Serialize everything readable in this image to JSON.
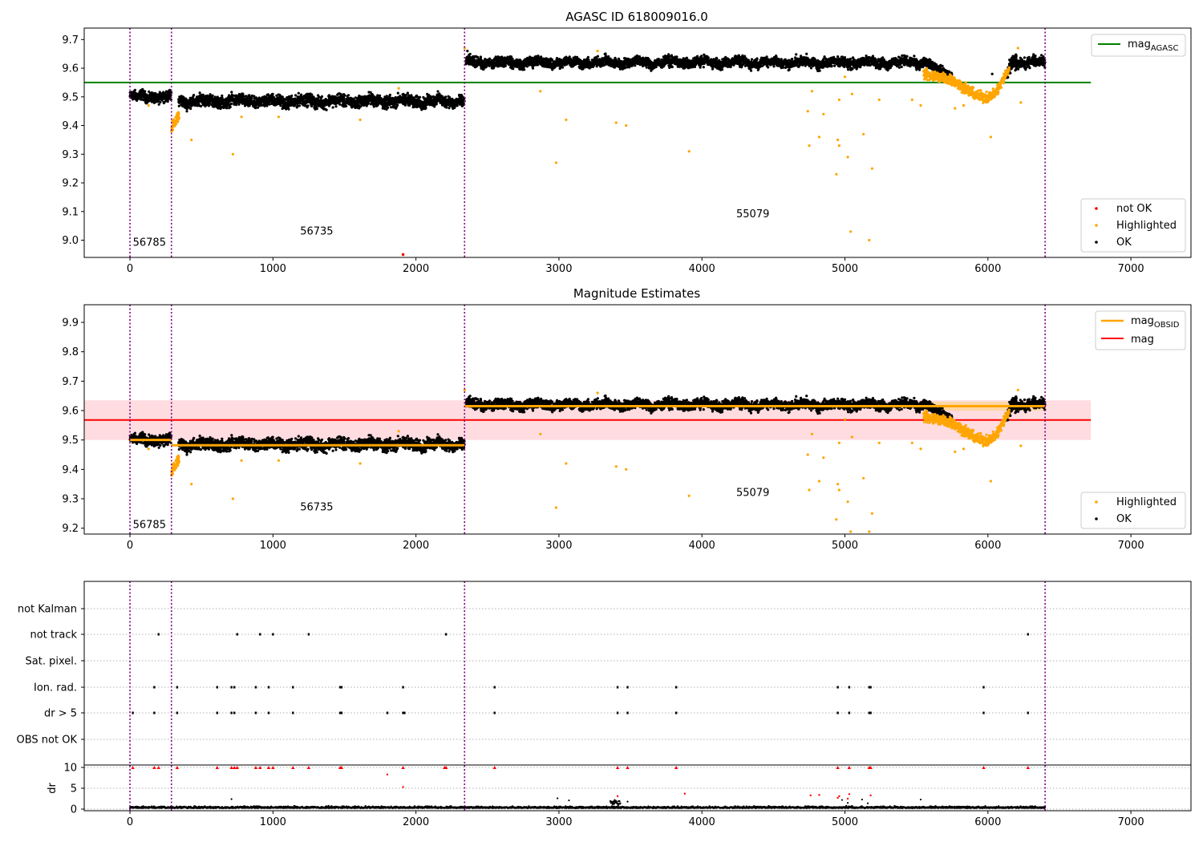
{
  "chart_data": [
    {
      "type": "scatter",
      "title": "AGASC ID 618009016.0",
      "xlim": [
        -320,
        7420
      ],
      "ylim": [
        8.94,
        9.74
      ],
      "xticks": [
        0,
        1000,
        2000,
        3000,
        4000,
        5000,
        6000,
        7000
      ],
      "yticks": [
        9.0,
        9.1,
        9.2,
        9.3,
        9.4,
        9.5,
        9.6,
        9.7
      ],
      "grid": false,
      "vlines": [
        0,
        290,
        2340,
        6400
      ],
      "obsid_annotations": [
        {
          "label": "56785",
          "x": 20,
          "y": 8.98
        },
        {
          "label": "56735",
          "x": 1190,
          "y": 9.02
        },
        {
          "label": "55079",
          "x": 4240,
          "y": 9.08
        }
      ],
      "hlines": [
        {
          "name": "mag_AGASC",
          "y": 9.55,
          "x0": -320,
          "x1": 6720,
          "color": "#008000"
        }
      ],
      "legend_lines": [
        {
          "label": "mag",
          "sub": "AGASC",
          "color": "#008000"
        }
      ],
      "legend_points": [
        {
          "label": "not OK",
          "color": "#ff0000"
        },
        {
          "label": "Highlighted",
          "color": "#ffa500"
        },
        {
          "label": "OK",
          "color": "#000000"
        }
      ],
      "legend_placement": [
        "top-right",
        "bottom-right"
      ],
      "ok_segments": [
        {
          "x0": 0,
          "x1": 290,
          "level": 9.5,
          "noise": 0.012
        },
        {
          "x0": 340,
          "x1": 2340,
          "level": 9.485,
          "noise": 0.014
        },
        {
          "x0": 2350,
          "x1": 5600,
          "level": 9.62,
          "noise": 0.012
        },
        {
          "x0": 6150,
          "x1": 6400,
          "level": 9.62,
          "noise": 0.012
        }
      ],
      "highlight_trends": [
        {
          "x0": 290,
          "x1": 345,
          "y0": 9.39,
          "y1": 9.44
        },
        {
          "x0": 5550,
          "x1": 5750,
          "y0": 9.58,
          "y1": 9.56
        },
        {
          "x0": 5750,
          "x1": 5900,
          "y0": 9.56,
          "y1": 9.51
        },
        {
          "x0": 5900,
          "x1": 6050,
          "y0": 9.51,
          "y1": 9.51
        },
        {
          "x0": 6050,
          "x1": 6150,
          "y0": 9.51,
          "y1": 9.6
        }
      ],
      "ok_trend_end": {
        "x0": 5600,
        "x1": 5750,
        "y0": 9.61,
        "y1": 9.57
      },
      "ok_trend_rise": {
        "x0": 6130,
        "x1": 6200,
        "y0": 9.58,
        "y1": 9.64
      },
      "highlight_outliers": [
        [
          130,
          9.47
        ],
        [
          720,
          9.3
        ],
        [
          430,
          9.35
        ],
        [
          780,
          9.43
        ],
        [
          1040,
          9.43
        ],
        [
          1610,
          9.42
        ],
        [
          1880,
          9.53
        ],
        [
          2340,
          9.67
        ],
        [
          2870,
          9.52
        ],
        [
          2980,
          9.27
        ],
        [
          3050,
          9.42
        ],
        [
          3270,
          9.66
        ],
        [
          3400,
          9.41
        ],
        [
          3470,
          9.4
        ],
        [
          3910,
          9.31
        ],
        [
          4740,
          9.45
        ],
        [
          4750,
          9.33
        ],
        [
          4770,
          9.52
        ],
        [
          4820,
          9.36
        ],
        [
          4850,
          9.44
        ],
        [
          4940,
          9.23
        ],
        [
          4950,
          9.35
        ],
        [
          4960,
          9.33
        ],
        [
          4960,
          9.49
        ],
        [
          5000,
          9.57
        ],
        [
          5020,
          9.29
        ],
        [
          5040,
          9.03
        ],
        [
          5050,
          9.51
        ],
        [
          5130,
          9.37
        ],
        [
          5170,
          9.0
        ],
        [
          5190,
          9.25
        ],
        [
          5240,
          9.49
        ],
        [
          5470,
          9.49
        ],
        [
          5530,
          9.47
        ],
        [
          5770,
          9.46
        ],
        [
          5830,
          9.47
        ],
        [
          6020,
          9.36
        ],
        [
          6210,
          9.67
        ],
        [
          6230,
          9.48
        ]
      ],
      "notok_points": [
        [
          1910,
          8.95
        ]
      ],
      "ok_outliers": [
        [
          6030,
          9.58
        ],
        [
          5480,
          9.61
        ],
        [
          2360,
          9.66
        ]
      ]
    },
    {
      "type": "scatter",
      "title": "Magnitude Estimates",
      "xlim": [
        -320,
        7420
      ],
      "ylim": [
        9.18,
        9.96
      ],
      "xticks": [
        0,
        1000,
        2000,
        3000,
        4000,
        5000,
        6000,
        7000
      ],
      "yticks": [
        9.2,
        9.3,
        9.4,
        9.5,
        9.6,
        9.7,
        9.8,
        9.9
      ],
      "grid": false,
      "vlines": [
        0,
        290,
        2340,
        6400
      ],
      "obsid_annotations": [
        {
          "label": "56785",
          "x": 20,
          "y": 9.2
        },
        {
          "label": "56735",
          "x": 1190,
          "y": 9.26
        },
        {
          "label": "55079",
          "x": 4240,
          "y": 9.31
        }
      ],
      "mag": {
        "y": 9.568,
        "band": [
          9.5,
          9.635
        ],
        "x0": -320,
        "x1": 6720,
        "color": "#ff0000",
        "band_color": "#ffc0c6"
      },
      "mag_obsid": [
        {
          "x0": 0,
          "x1": 290,
          "y": 9.5
        },
        {
          "x0": 290,
          "x1": 2340,
          "y": 9.482
        },
        {
          "x0": 2340,
          "x1": 6400,
          "y": 9.615
        }
      ],
      "mag_obsid_band": {
        "x0": 5500,
        "x1": 6400,
        "y0": 9.6,
        "y1": 9.63
      },
      "legend_lines": [
        {
          "label": "mag",
          "sub": "OBSID",
          "color": "#ffa500"
        },
        {
          "label": "mag",
          "sub": "",
          "color": "#ff0000"
        }
      ],
      "legend_points": [
        {
          "label": "Highlighted",
          "color": "#ffa500"
        },
        {
          "label": "OK",
          "color": "#000000"
        }
      ],
      "legend_placement": [
        "top-right",
        "bottom-right"
      ]
    },
    {
      "type": "scatter",
      "title": "",
      "xlim": [
        -320,
        7420
      ],
      "xticks": [
        0,
        1000,
        2000,
        3000,
        4000,
        5000,
        6000,
        7000
      ],
      "vlines": [
        0,
        290,
        2340,
        6400
      ],
      "flag_rows": [
        "not Kalman",
        "not track",
        "Sat. pixel.",
        "Ion. rad.",
        "dr > 5",
        "OBS not OK"
      ],
      "flag_points": {
        "not Kalman": [],
        "not track": [
          200,
          750,
          910,
          1000,
          1250,
          2210,
          6280
        ],
        "Sat. pixel.": [],
        "Ion. rad.": [
          170,
          330,
          610,
          710,
          730,
          880,
          970,
          1140,
          1470,
          1480,
          1910,
          2550,
          3410,
          3480,
          3820,
          4950,
          5030,
          5170,
          5180,
          5970
        ],
        "dr > 5": [
          20,
          170,
          330,
          610,
          710,
          730,
          880,
          970,
          1140,
          1470,
          1480,
          1800,
          1910,
          1920,
          2550,
          3410,
          3480,
          3820,
          4950,
          5030,
          5170,
          5180,
          5970,
          6280
        ],
        "OBS not OK": []
      },
      "dr": {
        "ylabel": "dr",
        "ylim": [
          -0.5,
          10.5
        ],
        "yticks": [
          0,
          5,
          10
        ],
        "clipped_at": 10,
        "clipped_x": [
          20,
          170,
          200,
          330,
          610,
          710,
          730,
          750,
          880,
          910,
          970,
          1000,
          1140,
          1250,
          1470,
          1480,
          1910,
          2200,
          2210,
          2550,
          3410,
          3480,
          3820,
          4950,
          5030,
          5170,
          5180,
          5970,
          6280
        ],
        "red_points": [
          [
            1800,
            8.3
          ],
          [
            1910,
            5.3
          ],
          [
            3880,
            3.7
          ],
          [
            4760,
            3.3
          ],
          [
            4820,
            3.4
          ],
          [
            4950,
            2.7
          ],
          [
            4960,
            3.1
          ],
          [
            5030,
            3.6
          ],
          [
            5180,
            3.3
          ],
          [
            3410,
            3.1
          ],
          [
            5020,
            2.5
          ]
        ],
        "black_points": [
          [
            710,
            2.4
          ],
          [
            2990,
            2.6
          ],
          [
            3070,
            2.1
          ],
          [
            3390,
            2.2
          ],
          [
            3480,
            1.8
          ],
          [
            5120,
            2.3
          ],
          [
            5160,
            1.4
          ],
          [
            5530,
            2.3
          ],
          [
            5020,
            1.5
          ],
          [
            4980,
            2.2
          ]
        ]
      }
    }
  ]
}
